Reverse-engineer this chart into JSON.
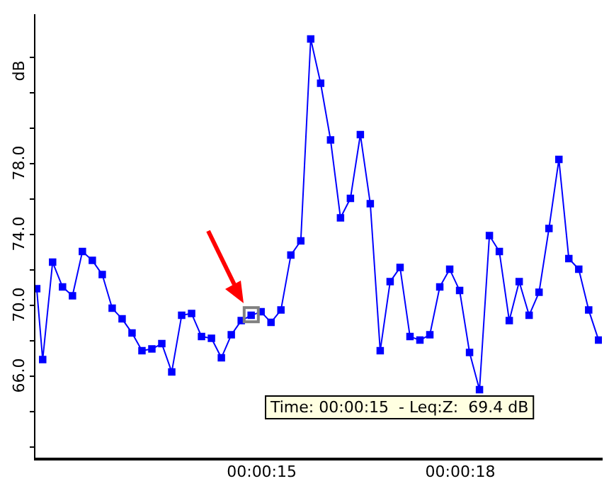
{
  "chart_data": {
    "type": "line",
    "ylabel": "dB",
    "x": [
      11.6,
      11.69,
      11.84,
      11.99,
      12.14,
      12.29,
      12.44,
      12.59,
      12.74,
      12.89,
      13.04,
      13.19,
      13.34,
      13.49,
      13.64,
      13.79,
      13.94,
      14.09,
      14.24,
      14.39,
      14.54,
      14.69,
      14.84,
      14.99,
      15.14,
      15.29,
      15.44,
      15.59,
      15.74,
      15.89,
      16.04,
      16.19,
      16.34,
      16.49,
      16.64,
      16.79,
      16.94,
      17.09,
      17.24,
      17.39,
      17.54,
      17.69,
      17.84,
      17.99,
      18.14,
      18.29,
      18.44,
      18.59,
      18.74,
      18.89,
      19.04,
      19.19,
      19.34,
      19.49,
      19.64,
      19.79,
      19.94,
      20.09
    ],
    "series": [
      {
        "color": "#0000ff",
        "values": [
          70.9,
          66.9,
          72.4,
          71.0,
          70.5,
          73.0,
          72.5,
          71.7,
          69.8,
          69.2,
          68.4,
          67.4,
          67.5,
          67.8,
          66.2,
          69.4,
          69.5,
          68.2,
          68.1,
          67.0,
          68.3,
          69.1,
          69.4,
          69.6,
          69.0,
          69.7,
          72.8,
          73.6,
          85.0,
          82.5,
          79.3,
          74.9,
          76.0,
          79.6,
          75.7,
          67.4,
          71.3,
          72.1,
          68.2,
          68.0,
          68.3,
          71.0,
          72.0,
          70.8,
          67.3,
          65.2,
          73.9,
          73.0,
          69.1,
          71.3,
          69.4,
          70.7,
          74.3,
          78.2,
          72.6,
          72.0,
          69.7,
          68.0
        ]
      }
    ],
    "xlim": [
      11.58,
      20.14
    ],
    "xticks": [
      {
        "value": 15,
        "label": "00:00:15"
      },
      {
        "value": 18,
        "label": "00:00:18"
      }
    ],
    "ylim": [
      61.3,
      86.4
    ],
    "yticks": [
      {
        "value": 62,
        "label": null
      },
      {
        "value": 64,
        "label": null
      },
      {
        "value": 66,
        "label": "66.0"
      },
      {
        "value": 68,
        "label": null
      },
      {
        "value": 70,
        "label": "70.0"
      },
      {
        "value": 72,
        "label": null
      },
      {
        "value": 74,
        "label": "74.0"
      },
      {
        "value": 76,
        "label": null
      },
      {
        "value": 78,
        "label": "78.0"
      },
      {
        "value": 80,
        "label": null
      },
      {
        "value": 82,
        "label": null
      },
      {
        "value": 84,
        "label": null
      }
    ],
    "grid": false,
    "legend": false,
    "marker": "square",
    "line_style": "solid",
    "annotations": [
      "Time: 00:00:15  - Leq:Z:  69.4 dB"
    ]
  }
}
